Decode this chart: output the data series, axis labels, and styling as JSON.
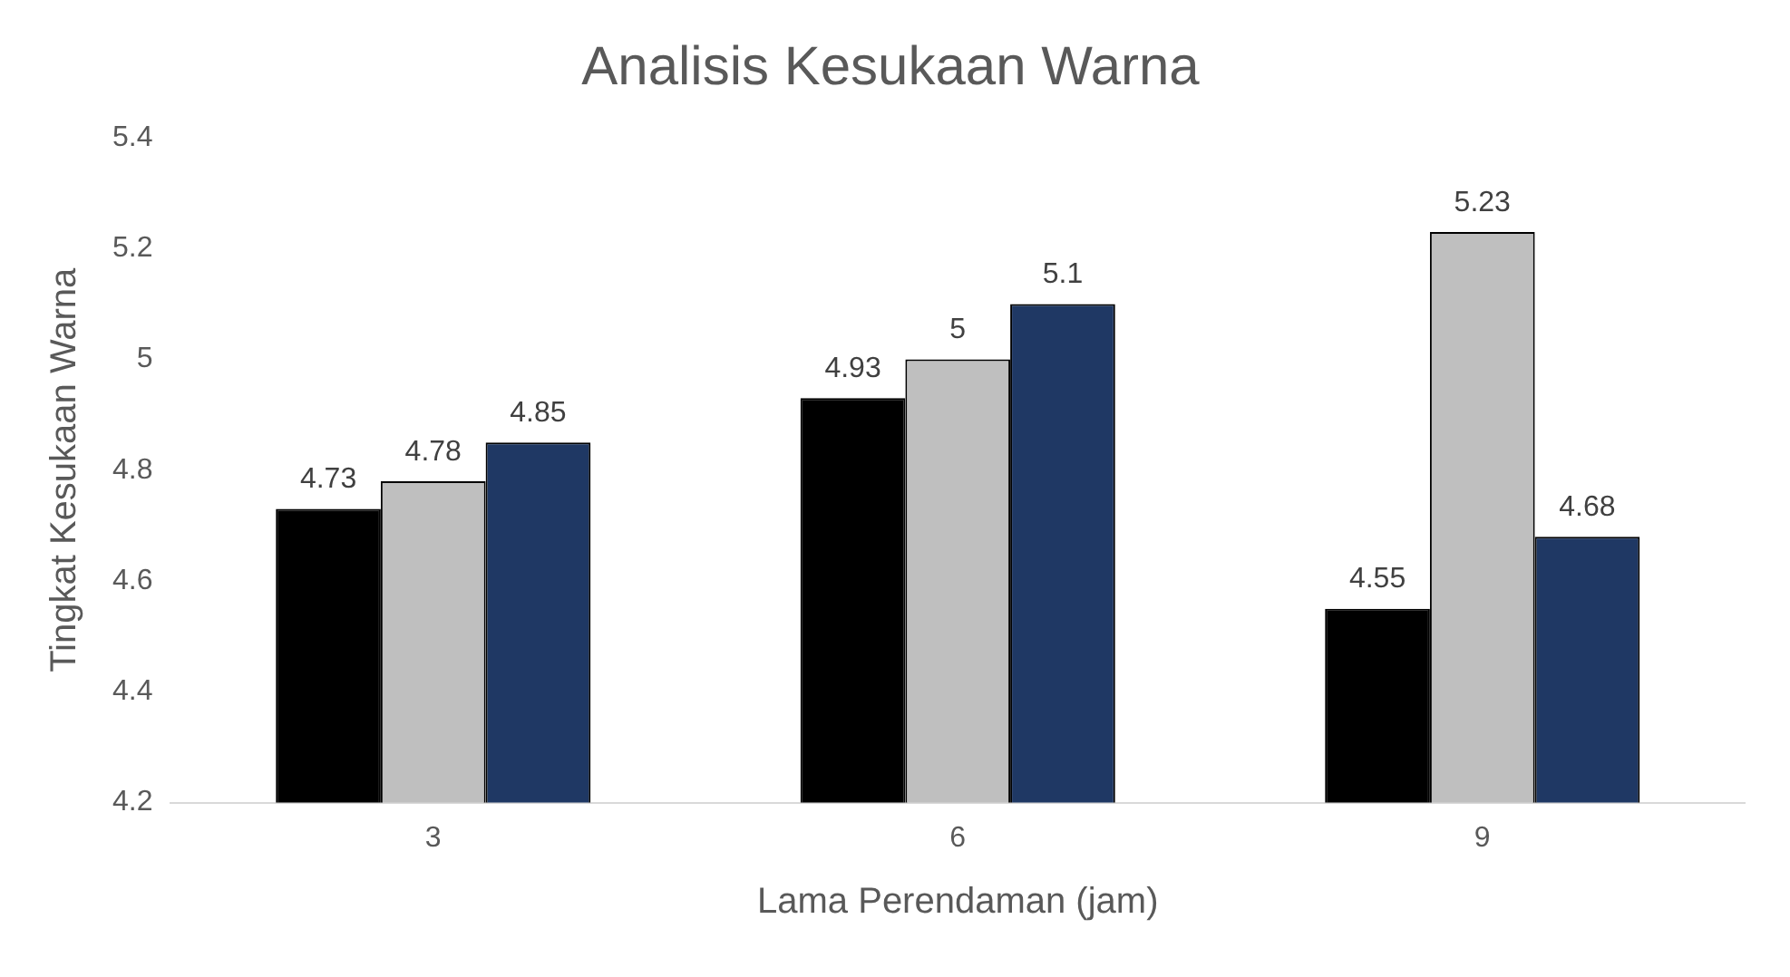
{
  "chart_data": {
    "type": "bar",
    "title": "Analisis Kesukaan Warna",
    "xlabel": "Lama Perendaman (jam)",
    "ylabel": "Tingkat Kesukaan Warna",
    "categories": [
      "3",
      "6",
      "9"
    ],
    "series": [
      {
        "color": "#000000",
        "values": [
          4.73,
          4.93,
          4.55
        ]
      },
      {
        "color": "#bfbfbf",
        "values": [
          4.78,
          5,
          5.23
        ]
      },
      {
        "color": "#1f3864",
        "values": [
          4.85,
          5.1,
          4.68
        ]
      }
    ],
    "ylim": [
      4.2,
      5.4
    ],
    "yticks": [
      4.2,
      4.4,
      4.6,
      4.8,
      5,
      5.2,
      5.4
    ],
    "grid": false,
    "legend": false,
    "data_labels": true
  }
}
